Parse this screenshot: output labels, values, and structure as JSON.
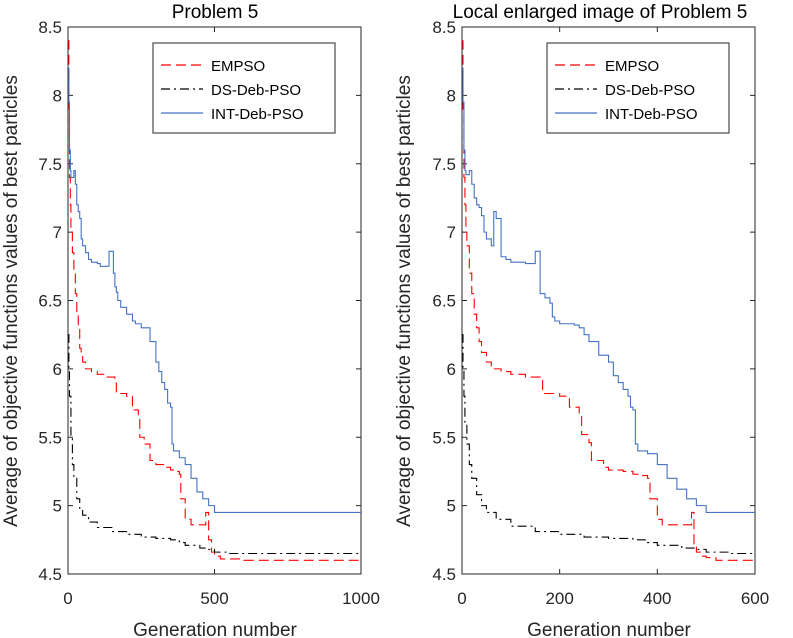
{
  "chart_data": [
    {
      "type": "line",
      "title": "Problem 5",
      "xlabel": "Generation number",
      "ylabel": "Average of objective functions values of best particles",
      "xlim": [
        0,
        1000
      ],
      "ylim": [
        4.5,
        8.5
      ],
      "xticks": [
        0,
        500,
        1000
      ],
      "xtick_labels": [
        "0",
        "500",
        "1000"
      ],
      "yticks": [
        4.5,
        5,
        5.5,
        6,
        6.5,
        7,
        7.5,
        8,
        8.5
      ],
      "ytick_labels": [
        "4.5",
        "5",
        "5.5",
        "6",
        "6.5",
        "7",
        "7.5",
        "8",
        "8.5"
      ],
      "legend_position": "top-right",
      "series": [
        {
          "name": "EMPSO",
          "color": "#ff0000",
          "style": "dashed",
          "x": [
            0,
            3,
            5,
            8,
            10,
            15,
            20,
            25,
            30,
            35,
            40,
            45,
            50,
            60,
            80,
            100,
            130,
            160,
            165,
            200,
            220,
            240,
            245,
            260,
            280,
            300,
            330,
            350,
            360,
            380,
            385,
            400,
            420,
            440,
            460,
            470,
            480,
            490,
            500,
            520,
            600,
            800,
            1000
          ],
          "y": [
            8.4,
            7.9,
            7.4,
            7.2,
            7.0,
            6.85,
            6.7,
            6.55,
            6.4,
            6.3,
            6.15,
            6.1,
            6.05,
            6.0,
            5.98,
            5.96,
            5.94,
            5.92,
            5.82,
            5.8,
            5.7,
            5.66,
            5.5,
            5.45,
            5.33,
            5.3,
            5.28,
            5.26,
            5.25,
            5.23,
            5.05,
            4.9,
            4.86,
            4.86,
            4.86,
            4.95,
            4.75,
            4.66,
            4.63,
            4.61,
            4.6,
            4.6,
            4.6
          ]
        },
        {
          "name": "DS-Deb-PSO",
          "color": "#000000",
          "style": "dashdot",
          "x": [
            0,
            3,
            5,
            10,
            15,
            20,
            30,
            40,
            50,
            70,
            100,
            150,
            200,
            250,
            300,
            350,
            380,
            400,
            450,
            480,
            500,
            550,
            600,
            800,
            1000
          ],
          "y": [
            6.25,
            6.0,
            5.8,
            5.5,
            5.3,
            5.2,
            5.05,
            4.98,
            4.93,
            4.88,
            4.84,
            4.81,
            4.79,
            4.77,
            4.76,
            4.75,
            4.73,
            4.71,
            4.69,
            4.68,
            4.66,
            4.65,
            4.65,
            4.65,
            4.65
          ]
        },
        {
          "name": "INT-Deb-PSO",
          "color": "#4472c4",
          "style": "solid",
          "x": [
            0,
            3,
            5,
            8,
            10,
            15,
            20,
            25,
            30,
            35,
            40,
            45,
            50,
            60,
            70,
            80,
            90,
            100,
            110,
            130,
            140,
            150,
            155,
            160,
            165,
            170,
            180,
            200,
            220,
            230,
            240,
            250,
            260,
            280,
            300,
            310,
            320,
            330,
            340,
            350,
            355,
            360,
            380,
            400,
            420,
            440,
            460,
            480,
            500,
            600,
            800,
            1000
          ],
          "y": [
            8.2,
            7.95,
            7.6,
            7.45,
            7.4,
            7.4,
            7.45,
            7.35,
            7.2,
            7.15,
            7.1,
            6.95,
            6.9,
            6.85,
            6.8,
            6.78,
            6.78,
            6.77,
            6.75,
            6.75,
            6.86,
            6.86,
            6.7,
            6.6,
            6.56,
            6.5,
            6.45,
            6.4,
            6.35,
            6.33,
            6.33,
            6.3,
            6.3,
            6.2,
            6.05,
            5.98,
            5.9,
            5.85,
            5.75,
            5.72,
            5.45,
            5.4,
            5.35,
            5.3,
            5.2,
            5.1,
            5.05,
            5.0,
            4.95,
            4.95,
            4.95,
            4.95
          ]
        }
      ]
    },
    {
      "type": "line",
      "title": "Local enlarged image of Problem 5",
      "xlabel": "Generation number",
      "ylabel": "Average of objective functions values of best particles",
      "xlim": [
        0,
        600
      ],
      "ylim": [
        4.5,
        8.5
      ],
      "xticks": [
        0,
        200,
        400,
        600
      ],
      "xtick_labels": [
        "0",
        "200",
        "400",
        "600"
      ],
      "yticks": [
        4.5,
        5,
        5.5,
        6,
        6.5,
        7,
        7.5,
        8,
        8.5
      ],
      "ytick_labels": [
        "4.5",
        "5",
        "5.5",
        "6",
        "6.5",
        "7",
        "7.5",
        "8",
        "8.5"
      ],
      "legend_position": "top-right",
      "series": [
        {
          "name": "EMPSO",
          "color": "#ff0000",
          "style": "dashed",
          "x": [
            0,
            2,
            4,
            6,
            8,
            10,
            15,
            20,
            25,
            30,
            35,
            40,
            50,
            60,
            80,
            100,
            130,
            160,
            165,
            200,
            220,
            240,
            245,
            260,
            265,
            290,
            300,
            330,
            350,
            360,
            380,
            385,
            400,
            410,
            440,
            460,
            470,
            475,
            480,
            490,
            500,
            520,
            600
          ],
          "y": [
            8.4,
            7.9,
            7.4,
            7.2,
            7.0,
            6.9,
            6.7,
            6.55,
            6.4,
            6.3,
            6.2,
            6.12,
            6.05,
            6.0,
            5.98,
            5.96,
            5.94,
            5.92,
            5.82,
            5.8,
            5.72,
            5.67,
            5.52,
            5.46,
            5.33,
            5.28,
            5.26,
            5.25,
            5.23,
            5.22,
            5.2,
            5.05,
            4.9,
            4.86,
            4.86,
            4.86,
            4.95,
            4.72,
            4.66,
            4.63,
            4.62,
            4.6,
            4.6
          ]
        },
        {
          "name": "DS-Deb-PSO",
          "color": "#000000",
          "style": "dashdot",
          "x": [
            0,
            2,
            4,
            6,
            10,
            15,
            20,
            30,
            40,
            50,
            70,
            100,
            150,
            200,
            250,
            300,
            350,
            380,
            400,
            450,
            480,
            500,
            550,
            600
          ],
          "y": [
            6.25,
            6.0,
            5.8,
            5.6,
            5.45,
            5.3,
            5.2,
            5.08,
            5.0,
            4.95,
            4.9,
            4.85,
            4.81,
            4.79,
            4.77,
            4.76,
            4.75,
            4.73,
            4.71,
            4.69,
            4.68,
            4.66,
            4.65,
            4.65
          ]
        },
        {
          "name": "INT-Deb-PSO",
          "color": "#4472c4",
          "style": "solid",
          "x": [
            0,
            2,
            4,
            6,
            8,
            10,
            15,
            20,
            25,
            30,
            35,
            40,
            45,
            50,
            60,
            65,
            70,
            80,
            90,
            100,
            110,
            130,
            140,
            150,
            155,
            160,
            170,
            180,
            185,
            190,
            200,
            220,
            230,
            240,
            250,
            260,
            280,
            300,
            310,
            320,
            330,
            340,
            345,
            350,
            355,
            360,
            380,
            400,
            420,
            440,
            460,
            480,
            500,
            600
          ],
          "y": [
            8.2,
            7.95,
            7.6,
            7.45,
            7.42,
            7.42,
            7.45,
            7.35,
            7.25,
            7.2,
            7.18,
            7.12,
            7.0,
            6.95,
            6.9,
            7.15,
            7.1,
            6.82,
            6.8,
            6.78,
            6.78,
            6.77,
            6.77,
            6.86,
            6.86,
            6.55,
            6.52,
            6.48,
            6.38,
            6.35,
            6.33,
            6.33,
            6.32,
            6.3,
            6.25,
            6.2,
            6.1,
            6.05,
            5.95,
            5.9,
            5.85,
            5.8,
            5.72,
            5.7,
            5.45,
            5.4,
            5.38,
            5.3,
            5.2,
            5.12,
            5.05,
            5.0,
            4.95,
            4.95
          ]
        }
      ]
    }
  ]
}
